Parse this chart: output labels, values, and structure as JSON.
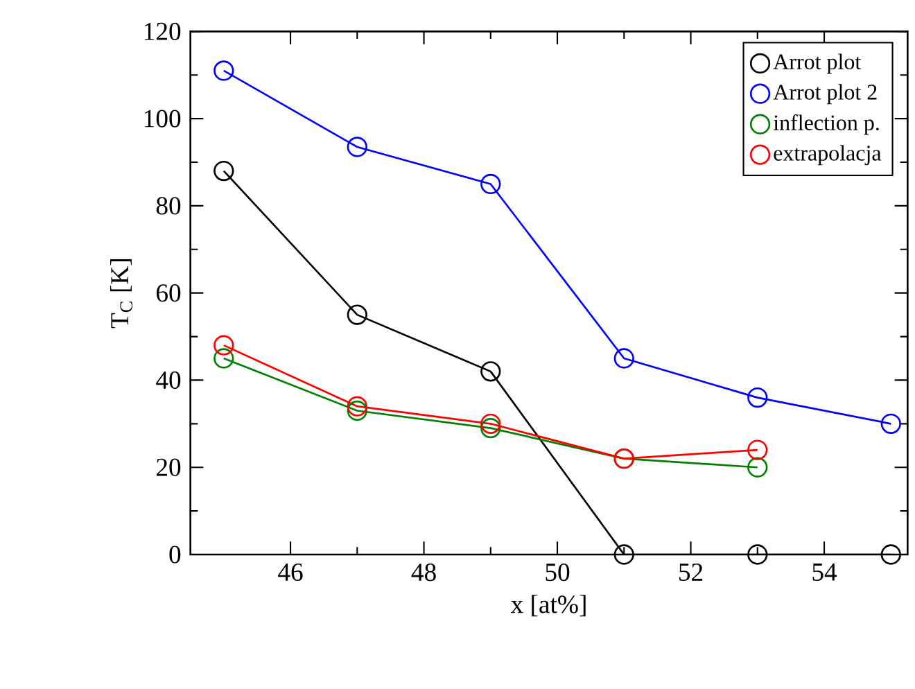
{
  "chart_data": {
    "type": "line",
    "xlabel": "x [at%]",
    "ylabel": "T$_{C}$ [K]",
    "x": [
      45,
      47,
      49,
      51,
      53,
      55
    ],
    "series": [
      {
        "name": "Arrot plot",
        "color": "#000000",
        "values": [
          88,
          55,
          42,
          0,
          0,
          0
        ]
      },
      {
        "name": "Arrot plot 2",
        "color": "#0000ff",
        "values": [
          111,
          93.5,
          85,
          45,
          36,
          30
        ]
      },
      {
        "name": "inflection p.",
        "color": "#008000",
        "values": [
          45,
          33,
          29,
          22,
          20,
          null
        ]
      },
      {
        "name": "extrapolacja",
        "color": "#ff0000",
        "values": [
          48,
          34,
          30,
          22,
          24,
          null
        ]
      }
    ],
    "xlim": [
      44.5,
      55.25
    ],
    "ylim": [
      0,
      120
    ],
    "xticks": [
      46,
      48,
      50,
      52,
      54
    ],
    "yticks": [
      0,
      20,
      40,
      60,
      80,
      100,
      120
    ],
    "grid": false,
    "legend": "top right",
    "marker": "circle",
    "line_style": "solid"
  }
}
